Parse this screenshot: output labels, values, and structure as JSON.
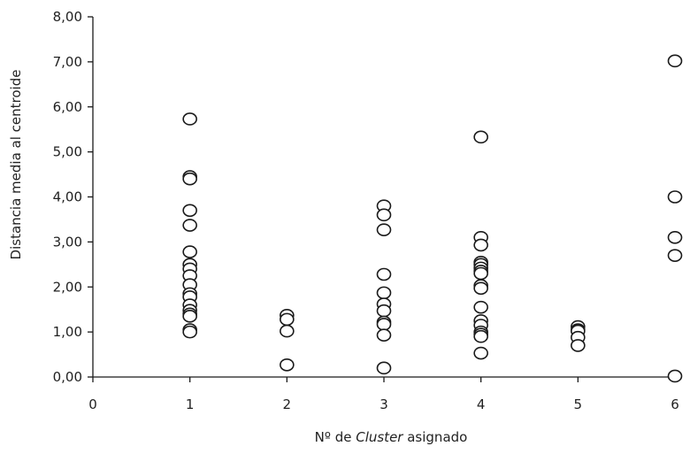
{
  "chart_data": {
    "type": "scatter",
    "xlabel_prefix": "Nº de ",
    "xlabel_italic": "Cluster",
    "xlabel_suffix": " asignado",
    "ylabel": "Distancia media al centroide",
    "xlim": [
      0,
      6
    ],
    "ylim": [
      0,
      8
    ],
    "xticks": [
      0,
      1,
      2,
      3,
      4,
      5,
      6
    ],
    "xtick_labels": [
      "0",
      "1",
      "2",
      "3",
      "4",
      "5",
      "6"
    ],
    "yticks": [
      0,
      1,
      2,
      3,
      4,
      5,
      6,
      7,
      8
    ],
    "ytick_labels": [
      "0,00",
      "1,00",
      "2,00",
      "3,00",
      "4,00",
      "5,00",
      "6,00",
      "7,00",
      "8,00"
    ],
    "grid": false,
    "legend": "none",
    "marker": "open-circle",
    "points": [
      {
        "x": 1,
        "y": 5.73
      },
      {
        "x": 1,
        "y": 4.45
      },
      {
        "x": 1,
        "y": 4.4
      },
      {
        "x": 1,
        "y": 3.7
      },
      {
        "x": 1,
        "y": 3.37
      },
      {
        "x": 1,
        "y": 2.78
      },
      {
        "x": 1,
        "y": 2.5
      },
      {
        "x": 1,
        "y": 2.4
      },
      {
        "x": 1,
        "y": 2.25
      },
      {
        "x": 1,
        "y": 2.05
      },
      {
        "x": 1,
        "y": 1.85
      },
      {
        "x": 1,
        "y": 1.78
      },
      {
        "x": 1,
        "y": 1.6
      },
      {
        "x": 1,
        "y": 1.48
      },
      {
        "x": 1,
        "y": 1.4
      },
      {
        "x": 1,
        "y": 1.35
      },
      {
        "x": 1,
        "y": 1.05
      },
      {
        "x": 1,
        "y": 1.0
      },
      {
        "x": 2,
        "y": 1.37
      },
      {
        "x": 2,
        "y": 1.28
      },
      {
        "x": 2,
        "y": 1.02
      },
      {
        "x": 2,
        "y": 0.27
      },
      {
        "x": 3,
        "y": 3.8
      },
      {
        "x": 3,
        "y": 3.6
      },
      {
        "x": 3,
        "y": 3.27
      },
      {
        "x": 3,
        "y": 2.28
      },
      {
        "x": 3,
        "y": 1.87
      },
      {
        "x": 3,
        "y": 1.62
      },
      {
        "x": 3,
        "y": 1.47
      },
      {
        "x": 3,
        "y": 1.22
      },
      {
        "x": 3,
        "y": 1.17
      },
      {
        "x": 3,
        "y": 0.93
      },
      {
        "x": 3,
        "y": 0.2
      },
      {
        "x": 4,
        "y": 5.33
      },
      {
        "x": 4,
        "y": 3.1
      },
      {
        "x": 4,
        "y": 2.93
      },
      {
        "x": 4,
        "y": 2.55
      },
      {
        "x": 4,
        "y": 2.5
      },
      {
        "x": 4,
        "y": 2.42
      },
      {
        "x": 4,
        "y": 2.35
      },
      {
        "x": 4,
        "y": 2.3
      },
      {
        "x": 4,
        "y": 2.03
      },
      {
        "x": 4,
        "y": 1.97
      },
      {
        "x": 4,
        "y": 1.55
      },
      {
        "x": 4,
        "y": 1.25
      },
      {
        "x": 4,
        "y": 1.15
      },
      {
        "x": 4,
        "y": 1.0
      },
      {
        "x": 4,
        "y": 0.95
      },
      {
        "x": 4,
        "y": 0.9
      },
      {
        "x": 4,
        "y": 0.53
      },
      {
        "x": 5,
        "y": 1.12
      },
      {
        "x": 5,
        "y": 1.05
      },
      {
        "x": 5,
        "y": 1.02
      },
      {
        "x": 5,
        "y": 0.88
      },
      {
        "x": 5,
        "y": 0.7
      },
      {
        "x": 6,
        "y": 7.02
      },
      {
        "x": 6,
        "y": 4.0
      },
      {
        "x": 6,
        "y": 3.1
      },
      {
        "x": 6,
        "y": 2.7
      },
      {
        "x": 6,
        "y": 0.02
      }
    ]
  }
}
